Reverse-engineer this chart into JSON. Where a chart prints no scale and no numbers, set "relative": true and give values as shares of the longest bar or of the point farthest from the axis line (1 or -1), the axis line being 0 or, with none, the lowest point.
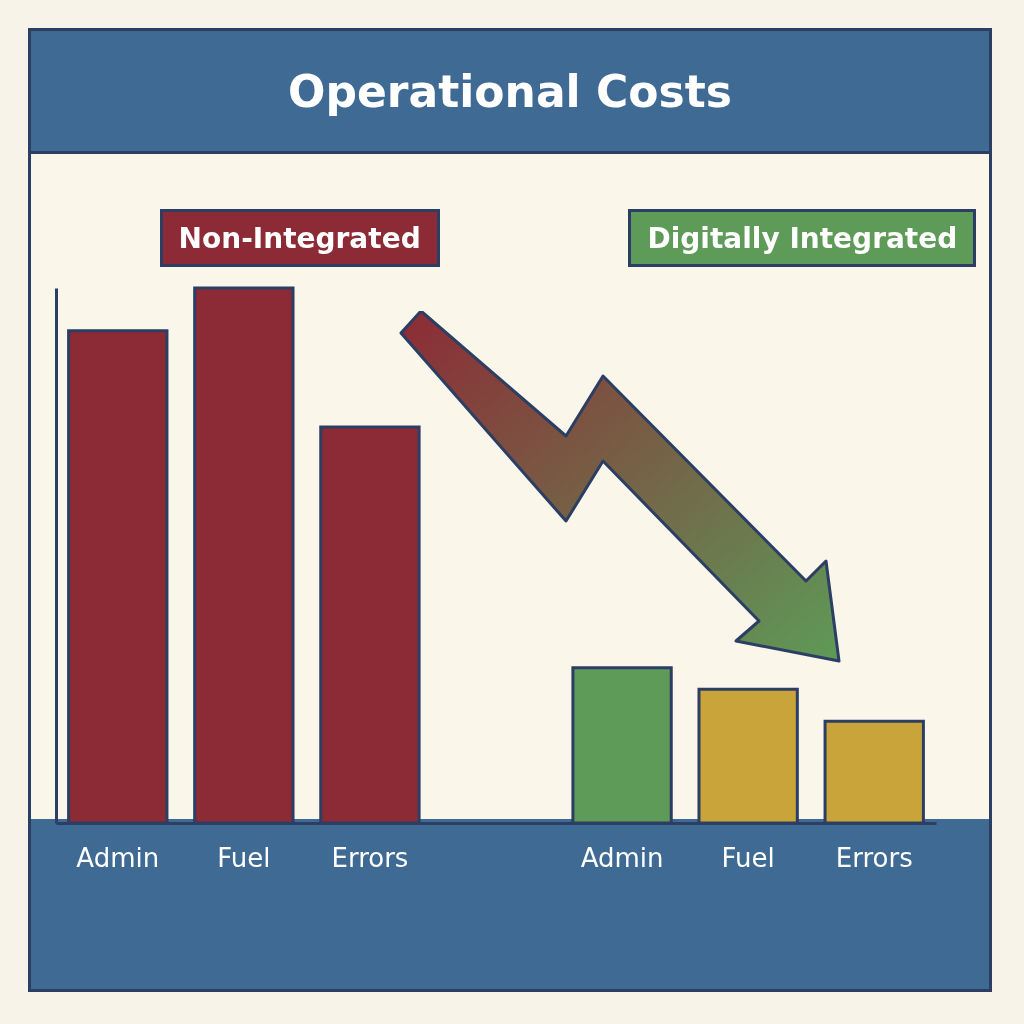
{
  "chart_data": {
    "type": "bar",
    "title": "Operational Costs",
    "relative": true,
    "legend": "top",
    "categories": [
      "Admin",
      "Fuel",
      "Errors",
      null,
      "Admin",
      "Fuel",
      "Errors"
    ],
    "series": [
      {
        "name": "Non-Integrated",
        "color": "#8c2b35",
        "values": [
          0.92,
          1,
          0.74,
          null,
          null,
          null,
          null
        ]
      },
      {
        "name": "Digitally Integrated",
        "colors": [
          null,
          null,
          null,
          null,
          "#5e9a58",
          "#c9a43a",
          "#c9a43a"
        ],
        "values": [
          null,
          null,
          null,
          null,
          0.29,
          0.25,
          0.19
        ]
      }
    ]
  }
}
